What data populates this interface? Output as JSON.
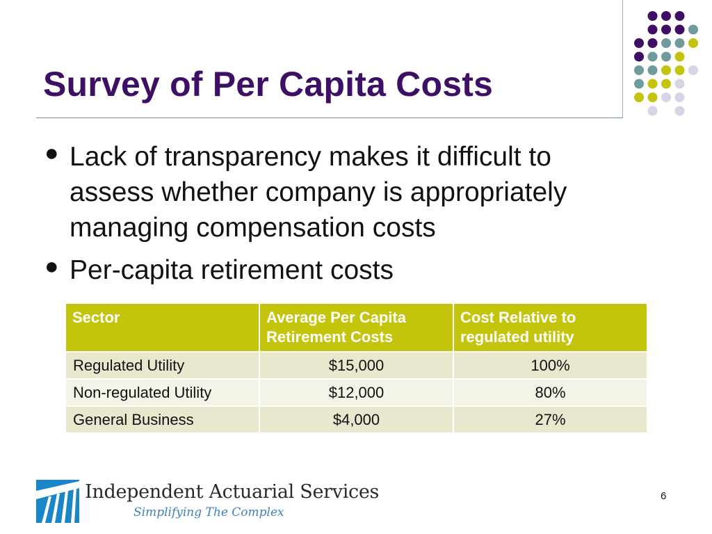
{
  "slide": {
    "title": "Survey of Per Capita Costs",
    "page_number": "6"
  },
  "bullets": [
    "Lack of transparency makes it difficult to assess whether company is appropriately managing compensation costs",
    "Per-capita retirement costs"
  ],
  "table": {
    "headers": [
      "Sector",
      "Average Per Capita Retirement Costs",
      "Cost Relative to regulated utility"
    ],
    "rows": [
      [
        "Regulated Utility",
        "$15,000",
        "100%"
      ],
      [
        "Non-regulated Utility",
        "$12,000",
        "80%"
      ],
      [
        "General Business",
        "$4,000",
        "27%"
      ]
    ]
  },
  "logo": {
    "name": "Independent Actuarial Services",
    "tagline": "Simplifying The Complex"
  },
  "colors": {
    "title": "#3d1066",
    "table_header": "#c4c40c",
    "row_odd": "#e8e8ce",
    "row_even": "#f3f3e8",
    "dot_purple": "#3d1066",
    "dot_teal": "#6e9c9c",
    "dot_olive": "#c4c40c",
    "dot_lavender": "#d8d4e8"
  }
}
